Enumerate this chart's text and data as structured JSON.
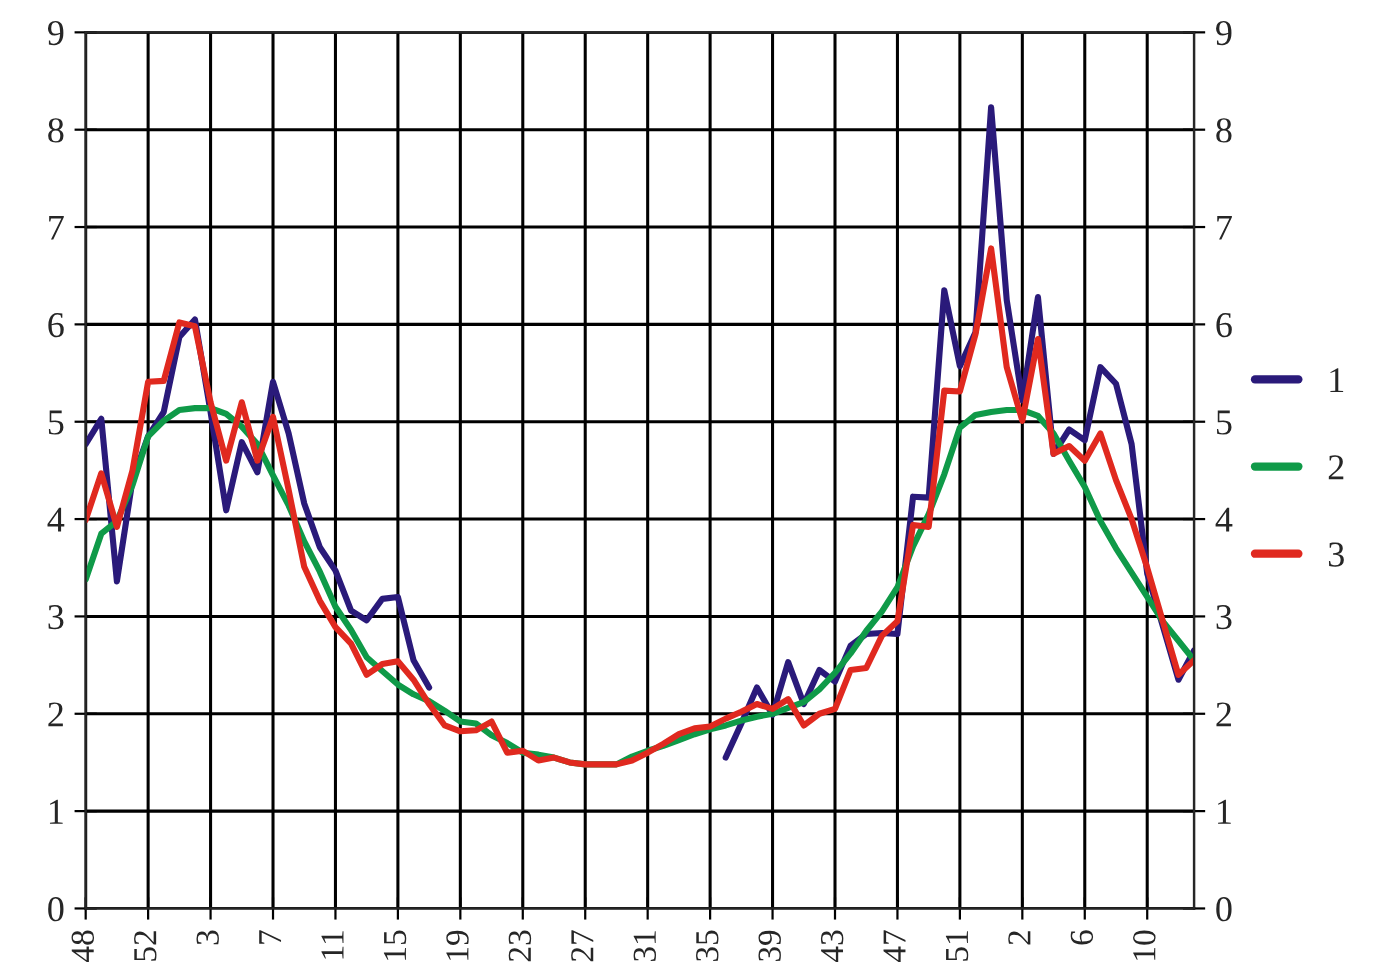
{
  "chart_data": {
    "type": "line",
    "categories": [
      "48",
      null,
      null,
      null,
      "52",
      null,
      null,
      null,
      "3",
      null,
      null,
      null,
      "7",
      null,
      null,
      null,
      "11",
      null,
      null,
      null,
      "15",
      null,
      null,
      null,
      "19",
      null,
      null,
      null,
      "23",
      null,
      null,
      null,
      "27",
      null,
      null,
      null,
      "31",
      null,
      null,
      null,
      "35",
      null,
      null,
      null,
      "39",
      null,
      null,
      null,
      "43",
      null,
      null,
      null,
      "47",
      null,
      null,
      null,
      "51",
      null,
      null,
      null,
      "2",
      null,
      null,
      null,
      "6",
      null,
      null,
      null,
      "10",
      null,
      null,
      null
    ],
    "series": [
      {
        "name": "1",
        "color": "#2a1a7a",
        "values": [
          4.77,
          5.03,
          3.36,
          4.4,
          4.85,
          5.1,
          5.87,
          6.05,
          5.1,
          4.09,
          4.79,
          4.48,
          5.41,
          4.88,
          4.16,
          3.71,
          3.47,
          3.06,
          2.96,
          3.18,
          3.2,
          2.55,
          2.27,
          null,
          null,
          null,
          null,
          null,
          null,
          null,
          null,
          null,
          null,
          null,
          null,
          null,
          null,
          null,
          null,
          null,
          null,
          1.55,
          1.9,
          2.27,
          1.99,
          2.53,
          2.1,
          2.45,
          2.33,
          2.7,
          2.82,
          2.83,
          2.82,
          4.23,
          4.22,
          6.35,
          5.57,
          5.92,
          8.23,
          6.25,
          5.22,
          6.28,
          4.67,
          4.92,
          4.81,
          5.56,
          5.39,
          4.77,
          3.44,
          2.9,
          2.35,
          2.65
        ]
      },
      {
        "name": "2",
        "color": "#0f9a48",
        "values": [
          3.38,
          3.85,
          3.98,
          4.35,
          4.85,
          5.01,
          5.12,
          5.14,
          5.14,
          5.08,
          4.95,
          4.77,
          4.45,
          4.14,
          3.77,
          3.46,
          3.1,
          2.86,
          2.58,
          2.44,
          2.3,
          2.2,
          2.13,
          2.03,
          1.92,
          1.9,
          1.78,
          1.7,
          1.6,
          1.58,
          1.55,
          1.5,
          1.48,
          1.48,
          1.48,
          1.56,
          1.62,
          1.67,
          1.73,
          1.79,
          1.84,
          1.88,
          1.93,
          1.97,
          2.0,
          2.06,
          2.12,
          2.25,
          2.42,
          2.62,
          2.85,
          3.05,
          3.3,
          3.72,
          4.05,
          4.46,
          4.94,
          5.07,
          5.1,
          5.12,
          5.12,
          5.06,
          4.88,
          4.6,
          4.33,
          3.98,
          3.7,
          3.45,
          3.2,
          2.95,
          2.75,
          2.55
        ]
      },
      {
        "name": "3",
        "color": "#e0291f",
        "values": [
          3.99,
          4.47,
          3.92,
          4.5,
          5.41,
          5.42,
          6.02,
          5.98,
          5.2,
          4.6,
          5.2,
          4.6,
          5.05,
          4.3,
          3.51,
          3.16,
          2.89,
          2.72,
          2.4,
          2.51,
          2.54,
          2.35,
          2.1,
          1.88,
          1.82,
          1.83,
          1.92,
          1.6,
          1.62,
          1.52,
          1.55,
          1.5,
          1.48,
          1.48,
          1.48,
          1.52,
          1.6,
          1.69,
          1.79,
          1.85,
          1.87,
          1.95,
          2.02,
          2.1,
          2.05,
          2.15,
          1.88,
          2.0,
          2.05,
          2.45,
          2.47,
          2.8,
          2.95,
          3.94,
          3.92,
          5.32,
          5.31,
          5.9,
          6.78,
          5.56,
          5.01,
          5.85,
          4.67,
          4.75,
          4.6,
          4.88,
          4.4,
          4.0,
          3.5,
          2.95,
          2.4,
          2.55
        ]
      }
    ],
    "ylim": [
      0,
      9
    ],
    "yticks": [
      0,
      1,
      2,
      3,
      4,
      5,
      6,
      7,
      8,
      9
    ],
    "y2lim": [
      0,
      9
    ],
    "y2ticks": [
      0,
      1,
      2,
      3,
      4,
      5,
      6,
      7,
      8,
      9
    ],
    "grid": true,
    "legend": "right",
    "marker": "none",
    "line_style": "solid"
  }
}
